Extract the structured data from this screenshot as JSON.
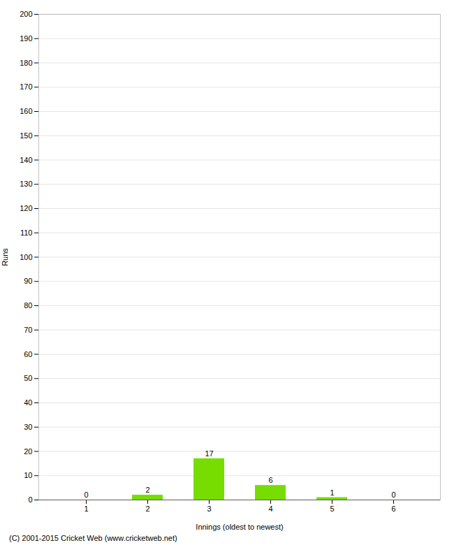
{
  "chart_data": {
    "type": "bar",
    "categories": [
      "1",
      "2",
      "3",
      "4",
      "5",
      "6"
    ],
    "values": [
      0,
      2,
      17,
      6,
      1,
      0
    ],
    "color": "#77dd00",
    "xlabel": "Innings (oldest to newest)",
    "ylabel": "Runs",
    "ylim": [
      0,
      200
    ],
    "yticks": [
      0,
      10,
      20,
      30,
      40,
      50,
      60,
      70,
      80,
      90,
      100,
      110,
      120,
      130,
      140,
      150,
      160,
      170,
      180,
      190,
      200
    ],
    "grid": true,
    "data_labels": true,
    "annotations": [
      "(C) 2001-2015 Cricket Web (www.cricketweb.net)"
    ]
  }
}
